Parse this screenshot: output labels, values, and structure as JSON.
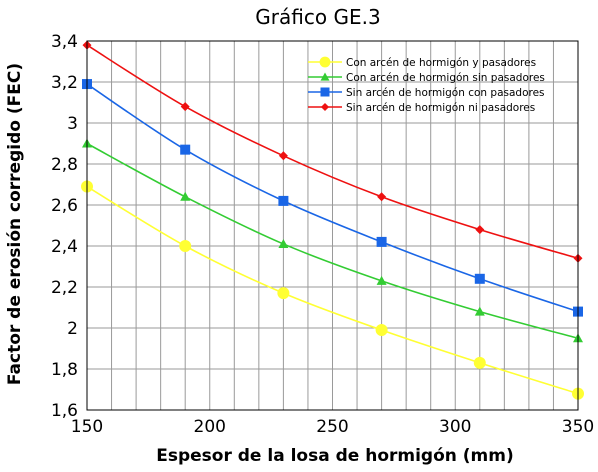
{
  "chart_data": {
    "type": "line",
    "title": "Gráfico GE.3",
    "xlabel": "Espesor de la losa de hormigón (mm)",
    "ylabel": "Factor de erosión corregido (FEC)",
    "x": [
      150,
      190,
      230,
      270,
      310,
      350
    ],
    "xlim": [
      150,
      350
    ],
    "ylim": [
      1.6,
      3.4
    ],
    "x_ticks": [
      150,
      200,
      250,
      300,
      350
    ],
    "x_tick_labels": [
      "150",
      "200",
      "250",
      "300",
      "350"
    ],
    "y_ticks": [
      1.6,
      1.8,
      2.0,
      2.2,
      2.4,
      2.6,
      2.8,
      3.0,
      3.2,
      3.4
    ],
    "y_tick_labels": [
      "1,6",
      "1,8",
      "2",
      "2,2",
      "2,4",
      "2,6",
      "2,8",
      "3",
      "3,2",
      "3,4"
    ],
    "grid": true,
    "legend_position": "top-right",
    "series": [
      {
        "name": "Con arcén de hormigón y pasadores",
        "values": [
          2.69,
          2.4,
          2.17,
          1.99,
          1.83,
          1.68
        ],
        "color": "#ffff33",
        "marker": "circle"
      },
      {
        "name": "Con arcén de hormigón sin pasadores",
        "values": [
          2.9,
          2.64,
          2.41,
          2.23,
          2.08,
          1.95
        ],
        "color": "#33cc33",
        "marker": "triangle"
      },
      {
        "name": "Sin arcén de hormigón con pasadores",
        "values": [
          3.19,
          2.87,
          2.62,
          2.42,
          2.24,
          2.08
        ],
        "color": "#1a66e6",
        "marker": "square"
      },
      {
        "name": "Sin arcén de hormigón ni pasadores",
        "values": [
          3.38,
          3.08,
          2.84,
          2.64,
          2.48,
          2.34
        ],
        "color": "#ee1111",
        "marker": "diamond"
      }
    ]
  }
}
